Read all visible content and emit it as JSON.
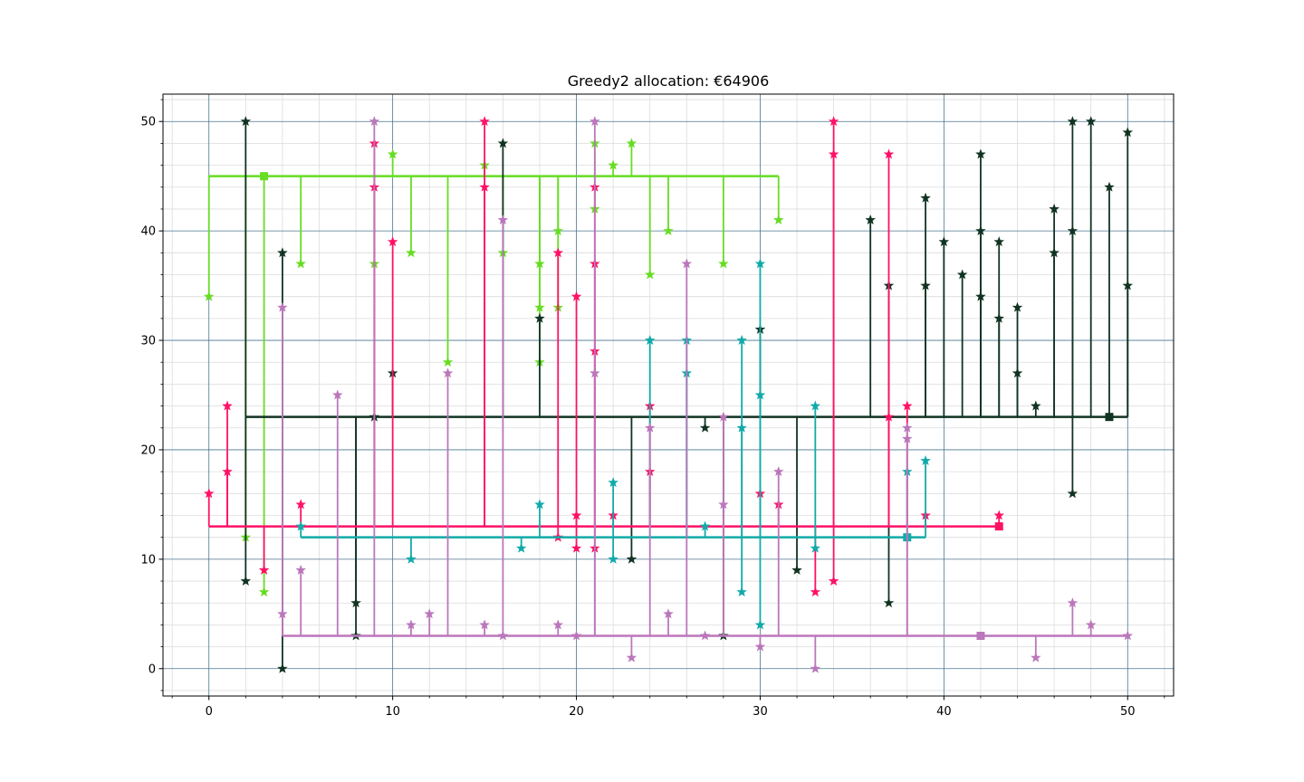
{
  "chart_data": {
    "type": "scatter",
    "title": "Greedy2 allocation: €64906",
    "xlabel": "",
    "ylabel": "",
    "xlim": [
      -2.5,
      52.5
    ],
    "ylim": [
      -2.5,
      52.5
    ],
    "x_ticks": [
      0,
      10,
      20,
      30,
      40,
      50
    ],
    "y_ticks": [
      0,
      10,
      20,
      30,
      40,
      50
    ],
    "x_tick_labels": [
      "0",
      "10",
      "20",
      "30",
      "40",
      "50"
    ],
    "y_tick_labels": [
      "0",
      "10",
      "20",
      "30",
      "40",
      "50"
    ],
    "grid": "major and minor",
    "legend": "none",
    "series": [
      {
        "color": "#66dd22",
        "facility": [
          3,
          45
        ],
        "trunk_y": 45,
        "points": [
          [
            0,
            34
          ],
          [
            2,
            12
          ],
          [
            3,
            7
          ],
          [
            5,
            37
          ],
          [
            9,
            37
          ],
          [
            10,
            47
          ],
          [
            11,
            38
          ],
          [
            13,
            28
          ],
          [
            15,
            46
          ],
          [
            16,
            38
          ],
          [
            18,
            37
          ],
          [
            18,
            33
          ],
          [
            18,
            28
          ],
          [
            19,
            40
          ],
          [
            19,
            33
          ],
          [
            21,
            48
          ],
          [
            21,
            42
          ],
          [
            22,
            46
          ],
          [
            23,
            48
          ],
          [
            24,
            36
          ],
          [
            25,
            40
          ],
          [
            28,
            37
          ],
          [
            31,
            41
          ]
        ]
      },
      {
        "color": "#113322",
        "facility": [
          49,
          23
        ],
        "trunk_y": 23,
        "points": [
          [
            2,
            50
          ],
          [
            2,
            8
          ],
          [
            4,
            38
          ],
          [
            4,
            0
          ],
          [
            8,
            6
          ],
          [
            8,
            3
          ],
          [
            9,
            23
          ],
          [
            10,
            27
          ],
          [
            16,
            48
          ],
          [
            18,
            32
          ],
          [
            23,
            10
          ],
          [
            27,
            22
          ],
          [
            28,
            3
          ],
          [
            30,
            31
          ],
          [
            32,
            9
          ],
          [
            36,
            41
          ],
          [
            37,
            35
          ],
          [
            37,
            6
          ],
          [
            39,
            43
          ],
          [
            39,
            35
          ],
          [
            40,
            39
          ],
          [
            41,
            36
          ],
          [
            42,
            47
          ],
          [
            42,
            40
          ],
          [
            42,
            34
          ],
          [
            43,
            39
          ],
          [
            43,
            32
          ],
          [
            44,
            33
          ],
          [
            44,
            27
          ],
          [
            45,
            24
          ],
          [
            46,
            42
          ],
          [
            46,
            38
          ],
          [
            47,
            50
          ],
          [
            47,
            40
          ],
          [
            47,
            16
          ],
          [
            48,
            50
          ],
          [
            49,
            44
          ],
          [
            50,
            49
          ],
          [
            50,
            35
          ]
        ]
      },
      {
        "color": "#ff1166",
        "facility": [
          43,
          13
        ],
        "trunk_y": 13,
        "points": [
          [
            0,
            16
          ],
          [
            1,
            24
          ],
          [
            1,
            18
          ],
          [
            3,
            9
          ],
          [
            5,
            15
          ],
          [
            9,
            48
          ],
          [
            9,
            44
          ],
          [
            10,
            39
          ],
          [
            15,
            50
          ],
          [
            15,
            44
          ],
          [
            19,
            38
          ],
          [
            19,
            12
          ],
          [
            20,
            34
          ],
          [
            20,
            14
          ],
          [
            20,
            11
          ],
          [
            21,
            44
          ],
          [
            21,
            37
          ],
          [
            21,
            29
          ],
          [
            21,
            11
          ],
          [
            22,
            14
          ],
          [
            24,
            24
          ],
          [
            24,
            18
          ],
          [
            30,
            16
          ],
          [
            31,
            15
          ],
          [
            33,
            7
          ],
          [
            34,
            50
          ],
          [
            34,
            47
          ],
          [
            34,
            8
          ],
          [
            37,
            47
          ],
          [
            37,
            23
          ],
          [
            38,
            24
          ],
          [
            39,
            14
          ],
          [
            43,
            14
          ]
        ]
      },
      {
        "color": "#11aaaa",
        "facility": [
          38,
          12
        ],
        "trunk_y": 12,
        "points": [
          [
            5,
            13
          ],
          [
            11,
            10
          ],
          [
            17,
            11
          ],
          [
            18,
            15
          ],
          [
            22,
            17
          ],
          [
            22,
            10
          ],
          [
            24,
            30
          ],
          [
            26,
            30
          ],
          [
            26,
            27
          ],
          [
            27,
            13
          ],
          [
            29,
            30
          ],
          [
            29,
            22
          ],
          [
            29,
            7
          ],
          [
            30,
            37
          ],
          [
            30,
            25
          ],
          [
            30,
            4
          ],
          [
            33,
            24
          ],
          [
            33,
            11
          ],
          [
            38,
            18
          ],
          [
            39,
            19
          ]
        ]
      },
      {
        "color": "#bb77bb",
        "facility": [
          42,
          3
        ],
        "trunk_y": 3,
        "points": [
          [
            4,
            33
          ],
          [
            4,
            5
          ],
          [
            5,
            9
          ],
          [
            7,
            25
          ],
          [
            9,
            50
          ],
          [
            11,
            4
          ],
          [
            12,
            5
          ],
          [
            13,
            27
          ],
          [
            15,
            4
          ],
          [
            16,
            41
          ],
          [
            16,
            3
          ],
          [
            19,
            4
          ],
          [
            20,
            3
          ],
          [
            21,
            50
          ],
          [
            21,
            27
          ],
          [
            23,
            1
          ],
          [
            24,
            22
          ],
          [
            25,
            5
          ],
          [
            26,
            37
          ],
          [
            27,
            3
          ],
          [
            28,
            23
          ],
          [
            28,
            15
          ],
          [
            30,
            2
          ],
          [
            31,
            18
          ],
          [
            33,
            0
          ],
          [
            38,
            22
          ],
          [
            38,
            21
          ],
          [
            45,
            1
          ],
          [
            47,
            6
          ],
          [
            48,
            4
          ],
          [
            50,
            3
          ]
        ]
      }
    ]
  }
}
